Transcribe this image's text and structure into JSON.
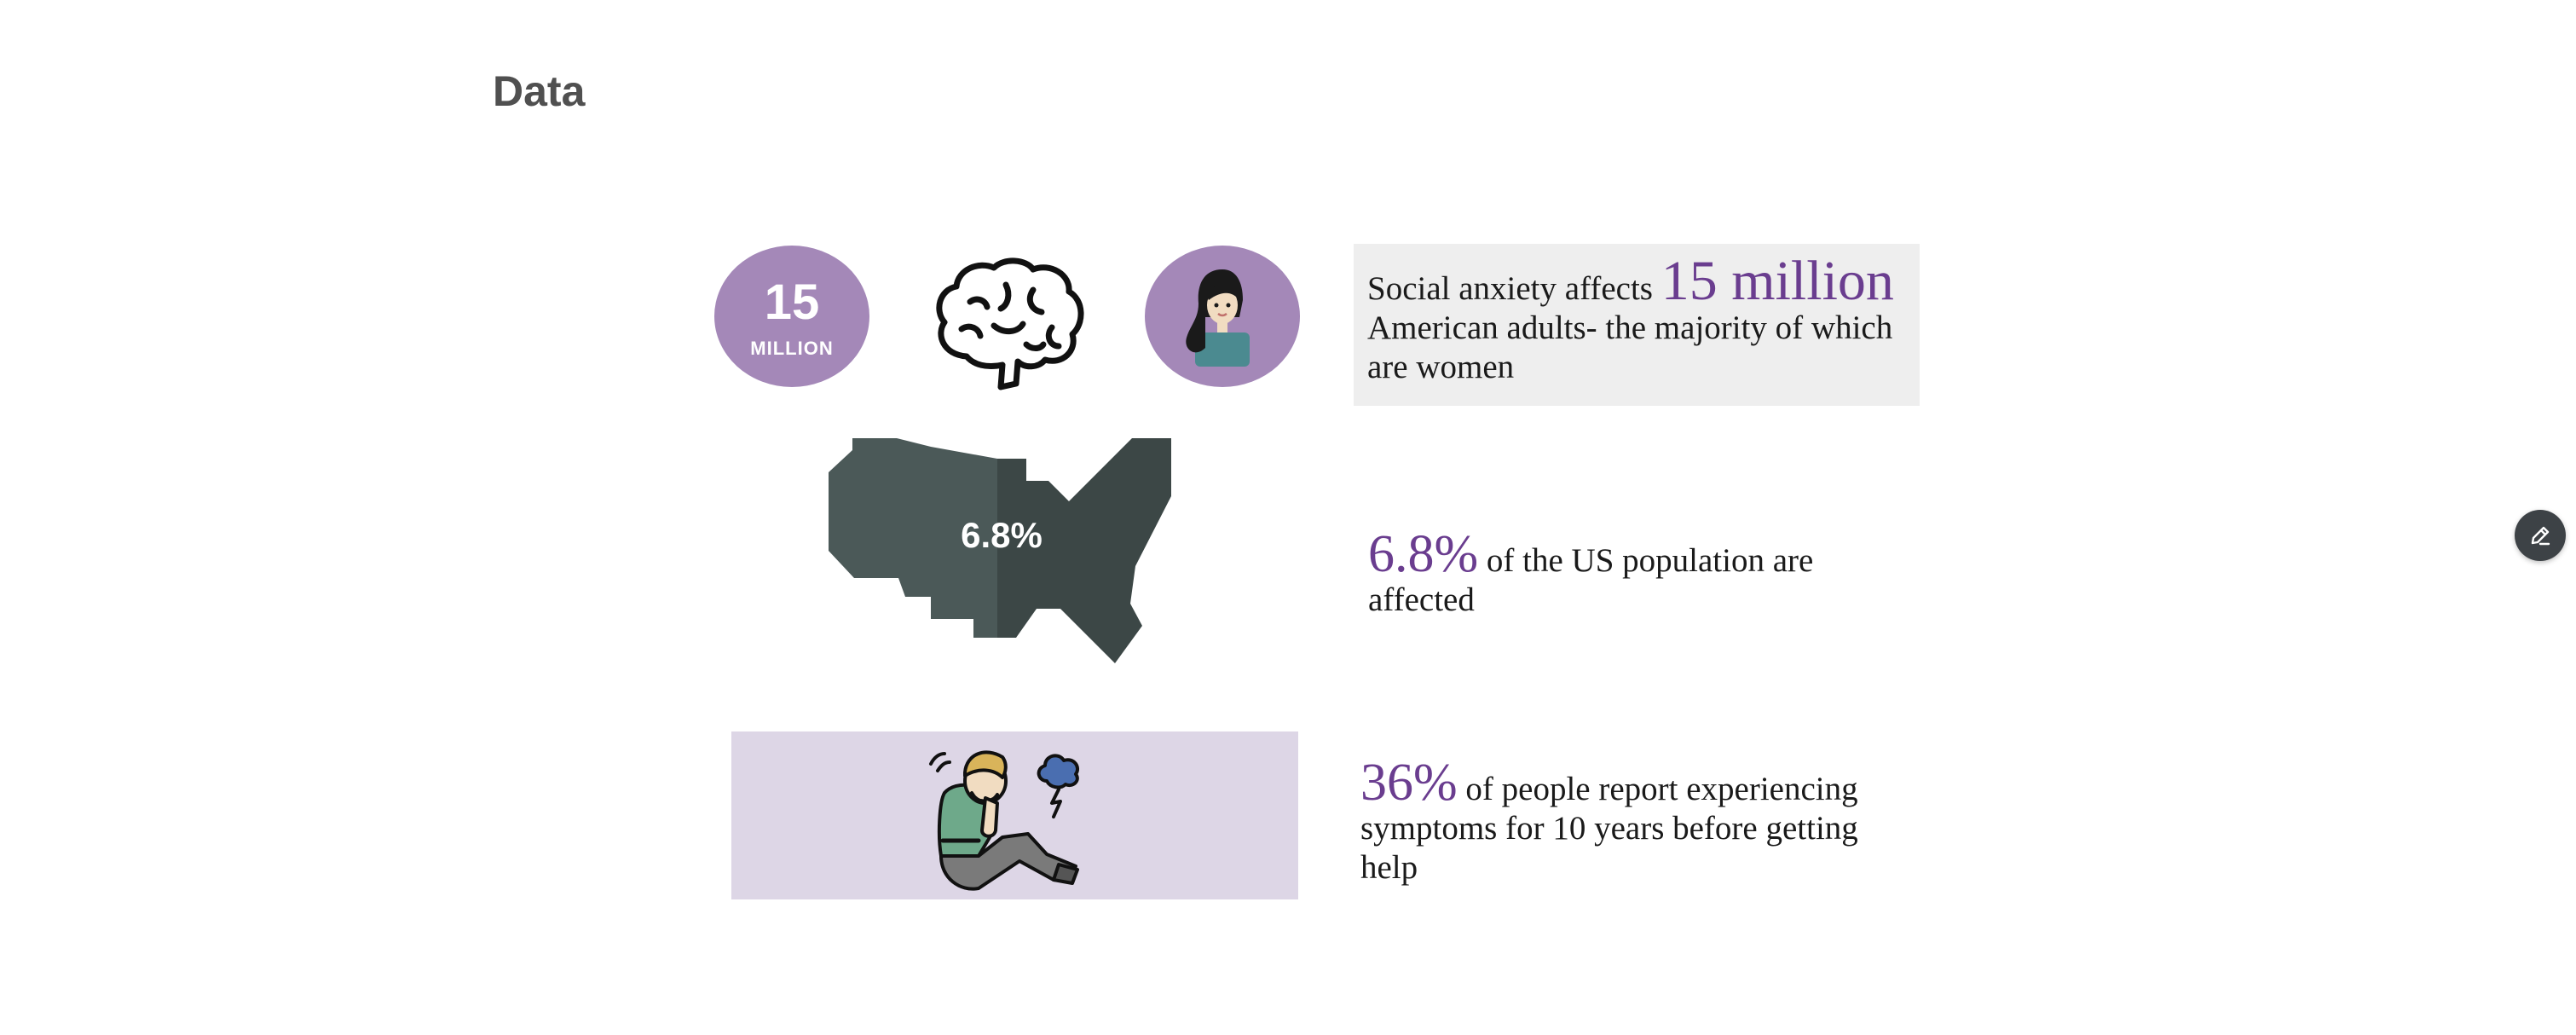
{
  "page": {
    "title": "Data"
  },
  "stats": {
    "circle_number": "15",
    "circle_unit": "MILLION",
    "card1_lead": "Social anxiety affects",
    "card1_highlight": "15 million",
    "card1_rest": "American adults- the majority of which are women",
    "map_value": "6.8%",
    "card2_highlight": "6.8%",
    "card2_rest": "of the US population are affected",
    "card3_highlight": "36%",
    "card3_rest": "of people report experiencing symptoms for 10 years before getting help"
  },
  "icons": {
    "brain": "brain-icon",
    "woman": "woman-avatar-icon",
    "map": "usa-map-icon",
    "distress": "distressed-person-icon",
    "edit": "pencil-icon"
  },
  "colors": {
    "accent": "#6a3d8f",
    "circle_fill": "#a488b8",
    "card_bg": "#eeeeee",
    "panel_bg": "#ddd6e6",
    "map_dark": "#3c4746",
    "map_light": "#4b5958"
  }
}
